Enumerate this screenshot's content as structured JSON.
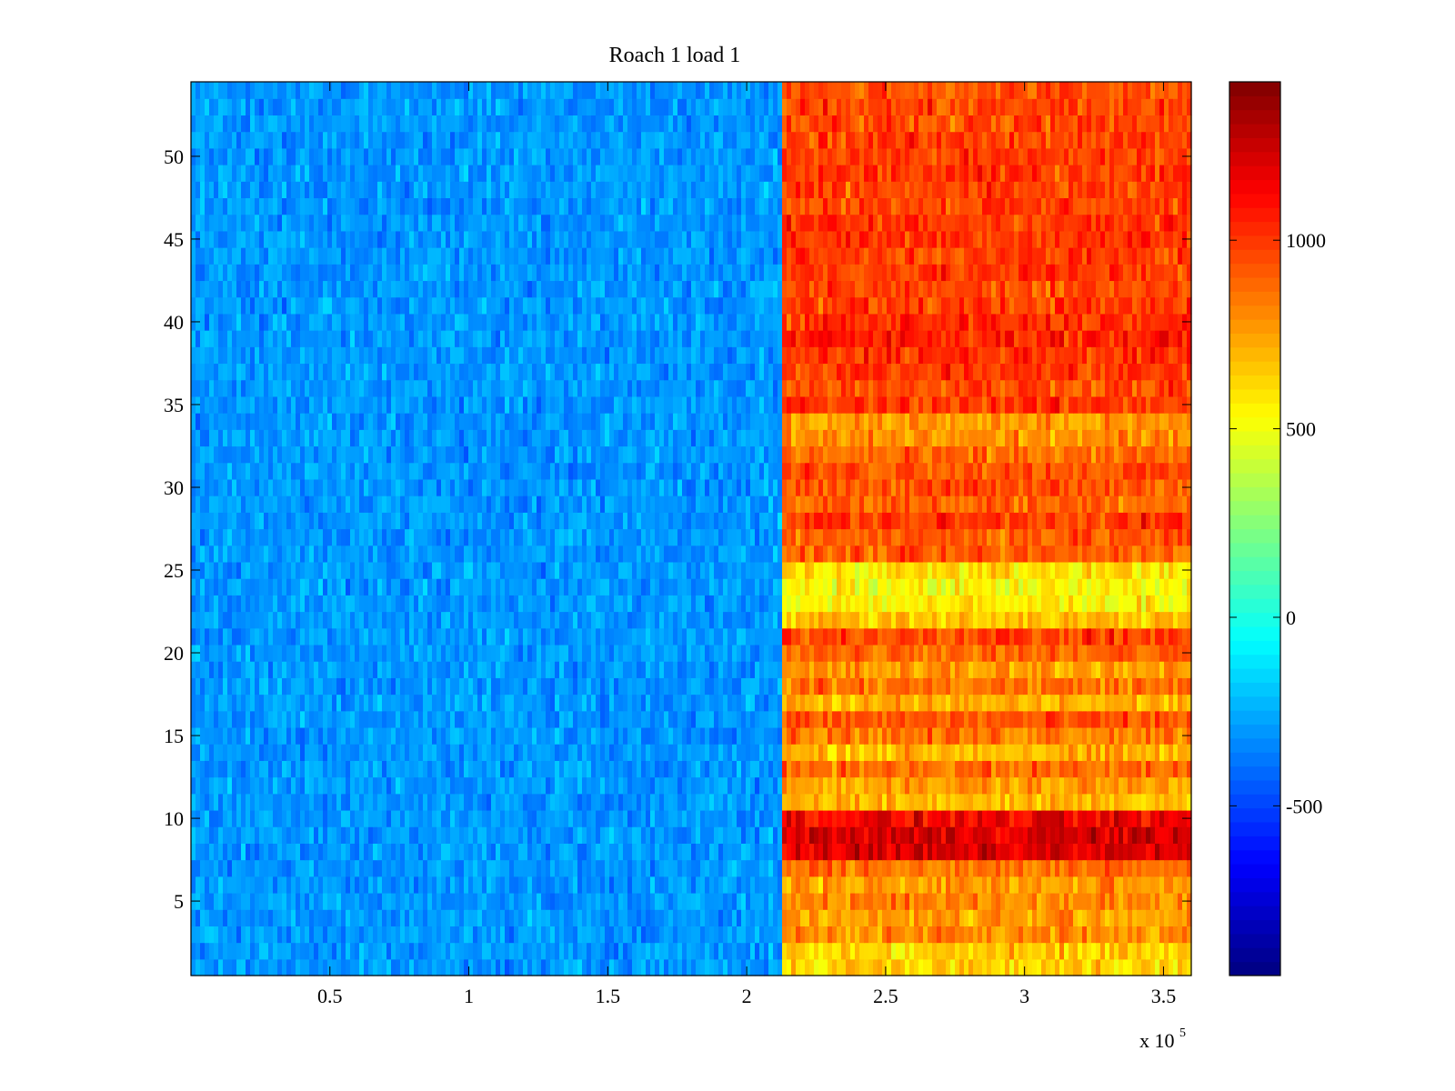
{
  "chart_data": {
    "type": "heatmap",
    "title": "Roach 1 load 1",
    "xlabel": "",
    "ylabel": "",
    "x_multiplier_label": "x 10",
    "x_multiplier_exponent": "5",
    "xlim": [
      0,
      360000
    ],
    "ylim": [
      0.5,
      54.5
    ],
    "xticks": [
      50000,
      100000,
      150000,
      200000,
      250000,
      300000,
      350000
    ],
    "xtick_labels": [
      "0.5",
      "1",
      "1.5",
      "2",
      "2.5",
      "3",
      "3.5"
    ],
    "yticks": [
      5,
      10,
      15,
      20,
      25,
      30,
      35,
      40,
      45,
      50
    ],
    "ytick_labels": [
      "5",
      "10",
      "15",
      "20",
      "25",
      "30",
      "35",
      "40",
      "45",
      "50"
    ],
    "rows": 54,
    "colormap": "jet",
    "clim": [
      -950,
      1420
    ],
    "colorbar_ticks": [
      -500,
      0,
      500,
      1000
    ],
    "colorbar_tick_labels": [
      "-500",
      "0",
      "500",
      "1000"
    ],
    "transition_x": 212000,
    "low_region_mean": -300,
    "high_region_row_means": [
      650,
      640,
      800,
      760,
      820,
      760,
      860,
      1200,
      1220,
      1140,
      700,
      760,
      880,
      700,
      850,
      920,
      700,
      860,
      760,
      900,
      980,
      680,
      560,
      520,
      600,
      900,
      920,
      1000,
      900,
      940,
      950,
      860,
      780,
      760,
      1000,
      960,
      1000,
      1020,
      1060,
      1020,
      980,
      960,
      1000,
      980,
      1020,
      1000,
      980,
      960,
      1000,
      980,
      980,
      960,
      960,
      940
    ],
    "grid": false,
    "colorbar_position": "right"
  }
}
